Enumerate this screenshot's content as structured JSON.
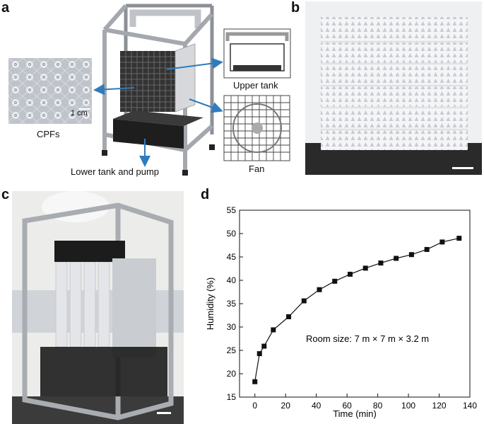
{
  "panels": {
    "a": {
      "letter": "a",
      "labels": {
        "cpfs": "CPFs",
        "scale": "1 cm",
        "upper_tank": "Upper tank",
        "fan": "Fan",
        "lower_tank": "Lower tank and pump"
      }
    },
    "b": {
      "letter": "b"
    },
    "c": {
      "letter": "c"
    },
    "d": {
      "letter": "d",
      "annotation": "Room size: 7 m × 7 m × 3.2 m"
    }
  },
  "colors": {
    "arrow": "#2f7bbf",
    "frame": "#8c9096",
    "line": "#111111"
  },
  "chart_data": {
    "type": "line",
    "title": "",
    "xlabel": "Time (min)",
    "ylabel": "Humidity (%)",
    "xlim": [
      -10,
      140
    ],
    "ylim": [
      15,
      55
    ],
    "xticks": [
      0,
      20,
      40,
      60,
      80,
      100,
      120,
      140
    ],
    "yticks": [
      15,
      20,
      25,
      30,
      35,
      40,
      45,
      50,
      55
    ],
    "series": [
      {
        "x": [
          0,
          3,
          6,
          12,
          22,
          32,
          42,
          52,
          62,
          72,
          82,
          92,
          102,
          112,
          122,
          133
        ],
        "y": [
          18.3,
          24.3,
          25.9,
          29.4,
          32.2,
          35.6,
          38.0,
          39.8,
          41.3,
          42.6,
          43.7,
          44.7,
          45.5,
          46.6,
          48.2,
          49.0
        ]
      }
    ]
  }
}
